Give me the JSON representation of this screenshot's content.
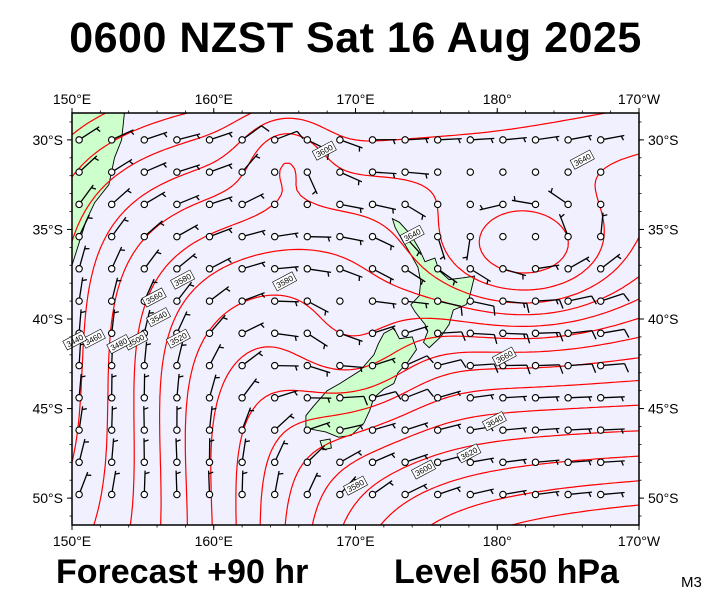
{
  "title": "0600 NZST Sat 16 Aug 2025",
  "footer": {
    "forecast": "Forecast +90 hr",
    "level": "Level 650 hPa",
    "model_code": "M3"
  },
  "map": {
    "lon_range": [
      150,
      190
    ],
    "lat_range": [
      -51.5,
      -28.5
    ],
    "lon_ticks": [
      {
        "lon": 150,
        "label": "150°E"
      },
      {
        "lon": 160,
        "label": "160°E"
      },
      {
        "lon": 170,
        "label": "170°E"
      },
      {
        "lon": 180,
        "label": "180°"
      },
      {
        "lon": 190,
        "label": "170°W"
      }
    ],
    "lat_ticks": [
      {
        "lat": -30,
        "label": "30°S"
      },
      {
        "lat": -35,
        "label": "35°S"
      },
      {
        "lat": -40,
        "label": "40°S"
      },
      {
        "lat": -45,
        "label": "45°S"
      },
      {
        "lat": -50,
        "label": "50°S"
      }
    ],
    "colors": {
      "ocean": "#f0f0ff",
      "land": "#ccffcc",
      "contour": "#ff0000",
      "frame": "#000000"
    },
    "contour_labels": [
      {
        "text": "3600",
        "lon": 167.8,
        "lat": -30.6
      },
      {
        "text": "3580",
        "lon": 157.8,
        "lat": -37.8
      },
      {
        "text": "3580",
        "lon": 165.0,
        "lat": -37.9
      },
      {
        "text": "3560",
        "lon": 155.8,
        "lat": -38.8
      },
      {
        "text": "3540",
        "lon": 156.1,
        "lat": -39.9
      },
      {
        "text": "3520",
        "lon": 157.5,
        "lat": -41.1
      },
      {
        "text": "3500",
        "lon": 154.5,
        "lat": -41.2
      },
      {
        "text": "3480",
        "lon": 153.3,
        "lat": -41.4
      },
      {
        "text": "3460",
        "lon": 151.5,
        "lat": -41.1
      },
      {
        "text": "3440",
        "lon": 150.2,
        "lat": -41.2
      },
      {
        "text": "3640",
        "lon": 174.0,
        "lat": -35.3
      },
      {
        "text": "3640",
        "lon": 186.0,
        "lat": -31.1
      },
      {
        "text": "3660",
        "lon": 180.5,
        "lat": -42.1
      },
      {
        "text": "3640",
        "lon": 179.8,
        "lat": -45.7
      },
      {
        "text": "3620",
        "lon": 178.0,
        "lat": -47.5
      },
      {
        "text": "3600",
        "lon": 174.8,
        "lat": -48.4
      },
      {
        "text": "3580",
        "lon": 170.0,
        "lat": -49.3
      }
    ]
  }
}
